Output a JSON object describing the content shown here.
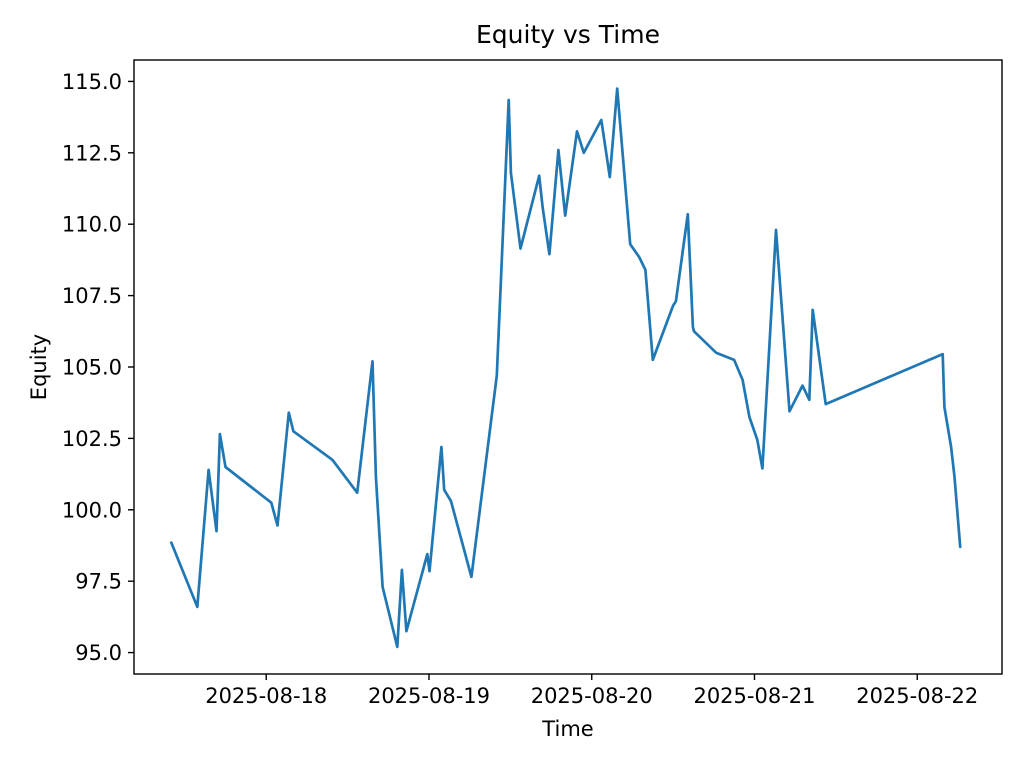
{
  "figure": {
    "background": "#ffffff"
  },
  "chart_data": {
    "type": "line",
    "title": "Equity vs Time",
    "xlabel": "Time",
    "ylabel": "Equity",
    "line_color": "#1f77b4",
    "grid": false,
    "legend": "none",
    "x_is_time": true,
    "xlim": [
      "2025-08-17T04:30:00",
      "2025-08-22T12:30:00"
    ],
    "ylim": [
      94.25,
      115.75
    ],
    "yticks": [
      95.0,
      97.5,
      100.0,
      102.5,
      105.0,
      107.5,
      110.0,
      112.5,
      115.0
    ],
    "ytick_labels": [
      "95.0",
      "97.5",
      "100.0",
      "102.5",
      "105.0",
      "107.5",
      "110.0",
      "112.5",
      "115.0"
    ],
    "xticks": [
      "2025-08-18T00:00:00",
      "2025-08-19T00:00:00",
      "2025-08-20T00:00:00",
      "2025-08-21T00:00:00",
      "2025-08-22T00:00:00"
    ],
    "xtick_labels": [
      "2025-08-18",
      "2025-08-19",
      "2025-08-20",
      "2025-08-21",
      "2025-08-22"
    ],
    "series": [
      {
        "name": "equity",
        "points": [
          [
            "2025-08-17T10:00:00",
            98.85
          ],
          [
            "2025-08-17T13:50:00",
            96.6
          ],
          [
            "2025-08-17T15:30:00",
            101.4
          ],
          [
            "2025-08-17T16:40:00",
            99.25
          ],
          [
            "2025-08-17T17:10:00",
            102.65
          ],
          [
            "2025-08-17T18:00:00",
            101.5
          ],
          [
            "2025-08-18T00:45:00",
            100.25
          ],
          [
            "2025-08-18T01:40:00",
            99.45
          ],
          [
            "2025-08-18T03:20:00",
            103.4
          ],
          [
            "2025-08-18T04:00:00",
            102.75
          ],
          [
            "2025-08-18T09:45:00",
            101.75
          ],
          [
            "2025-08-18T13:25:00",
            100.6
          ],
          [
            "2025-08-18T15:40:00",
            105.2
          ],
          [
            "2025-08-18T16:10:00",
            101.15
          ],
          [
            "2025-08-18T17:10:00",
            97.3
          ],
          [
            "2025-08-18T19:20:00",
            95.2
          ],
          [
            "2025-08-18T20:00:00",
            97.9
          ],
          [
            "2025-08-18T20:40:00",
            95.75
          ],
          [
            "2025-08-18T23:45:00",
            98.45
          ],
          [
            "2025-08-19T00:05:00",
            97.85
          ],
          [
            "2025-08-19T01:50:00",
            102.2
          ],
          [
            "2025-08-19T02:15:00",
            100.7
          ],
          [
            "2025-08-19T03:15:00",
            100.3
          ],
          [
            "2025-08-19T06:15:00",
            97.65
          ],
          [
            "2025-08-19T10:00:00",
            104.7
          ],
          [
            "2025-08-19T11:45:00",
            114.35
          ],
          [
            "2025-08-19T12:05:00",
            111.8
          ],
          [
            "2025-08-19T13:30:00",
            109.15
          ],
          [
            "2025-08-19T16:15:00",
            111.7
          ],
          [
            "2025-08-19T16:45:00",
            110.6
          ],
          [
            "2025-08-19T17:45:00",
            108.95
          ],
          [
            "2025-08-19T19:05:00",
            112.6
          ],
          [
            "2025-08-19T20:05:00",
            110.3
          ],
          [
            "2025-08-19T21:50:00",
            113.25
          ],
          [
            "2025-08-19T22:50:00",
            112.5
          ],
          [
            "2025-08-20T01:25:00",
            113.65
          ],
          [
            "2025-08-20T02:40:00",
            111.65
          ],
          [
            "2025-08-20T03:45:00",
            114.75
          ],
          [
            "2025-08-20T05:40:00",
            109.3
          ],
          [
            "2025-08-20T07:00:00",
            108.85
          ],
          [
            "2025-08-20T07:55:00",
            108.4
          ],
          [
            "2025-08-20T09:00:00",
            105.25
          ],
          [
            "2025-08-20T12:00:00",
            107.15
          ],
          [
            "2025-08-20T12:25:00",
            107.3
          ],
          [
            "2025-08-20T14:10:00",
            110.35
          ],
          [
            "2025-08-20T14:55:00",
            106.4
          ],
          [
            "2025-08-20T15:05:00",
            106.25
          ],
          [
            "2025-08-20T18:20:00",
            105.5
          ],
          [
            "2025-08-20T21:00:00",
            105.25
          ],
          [
            "2025-08-20T22:15:00",
            104.55
          ],
          [
            "2025-08-20T23:15:00",
            103.25
          ],
          [
            "2025-08-21T00:25:00",
            102.45
          ],
          [
            "2025-08-21T01:10:00",
            101.45
          ],
          [
            "2025-08-21T03:10:00",
            109.8
          ],
          [
            "2025-08-21T05:10:00",
            103.45
          ],
          [
            "2025-08-21T07:05:00",
            104.35
          ],
          [
            "2025-08-21T08:05:00",
            103.85
          ],
          [
            "2025-08-21T08:35:00",
            107.0
          ],
          [
            "2025-08-21T10:30:00",
            103.7
          ],
          [
            "2025-08-22T03:45:00",
            105.45
          ],
          [
            "2025-08-22T04:00:00",
            103.6
          ],
          [
            "2025-08-22T05:00:00",
            102.2
          ],
          [
            "2025-08-22T05:30:00",
            101.15
          ],
          [
            "2025-08-22T06:20:00",
            98.7
          ]
        ]
      }
    ]
  }
}
